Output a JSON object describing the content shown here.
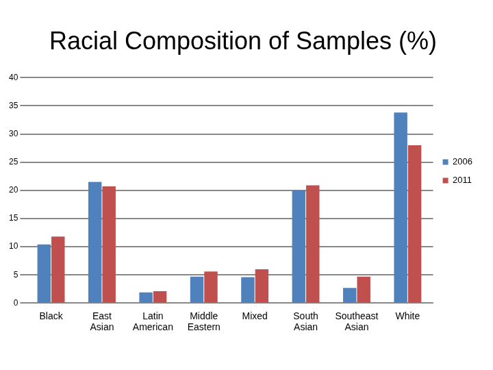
{
  "chart_data": {
    "type": "bar",
    "title": "Racial Composition of Samples (%)",
    "categories": [
      "Black",
      "East Asian",
      "Latin American",
      "Middle Eastern",
      "Mixed",
      "South Asian",
      "Southeast Asian",
      "White"
    ],
    "series": [
      {
        "name": "2006",
        "color": "#4f81bd",
        "values": [
          10.4,
          21.5,
          1.9,
          4.7,
          4.6,
          20.0,
          2.7,
          33.8
        ]
      },
      {
        "name": "2011",
        "color": "#c0504d",
        "values": [
          11.8,
          20.7,
          2.1,
          5.6,
          6.0,
          20.9,
          4.7,
          28.0
        ]
      }
    ],
    "ylim": [
      0,
      40
    ],
    "yticks": [
      0,
      5,
      10,
      15,
      20,
      25,
      30,
      35,
      40
    ],
    "grid": true,
    "legend": "right"
  }
}
